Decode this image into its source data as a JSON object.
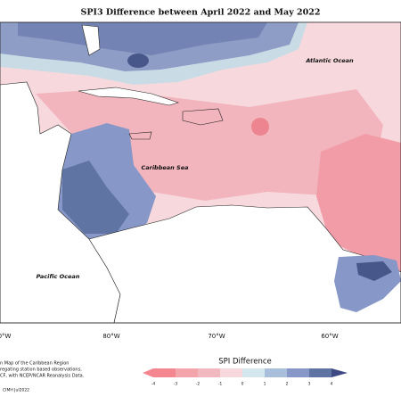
{
  "header": {
    "title": "SPI3 Difference between April 2022 and May 2022"
  },
  "map": {
    "labels": [
      "Atlantic Ocean",
      "Caribbean Sea",
      "Pacific Ocean"
    ],
    "longitudes": [
      "0°W",
      "80°W",
      "70°W",
      "60°W"
    ]
  },
  "legend": {
    "title": "SPI Difference",
    "ticks": [
      "-4",
      "-3",
      "-2",
      "-1",
      "0",
      "1",
      "2",
      "3",
      "4"
    ]
  },
  "footnote": {
    "lines": [
      "n Map of the Caribbean Region",
      "regating station based observations,",
      "CF, with NCEP/NCAR Reanalysis Data."
    ],
    "credit": "CIMH Jul2022"
  }
}
